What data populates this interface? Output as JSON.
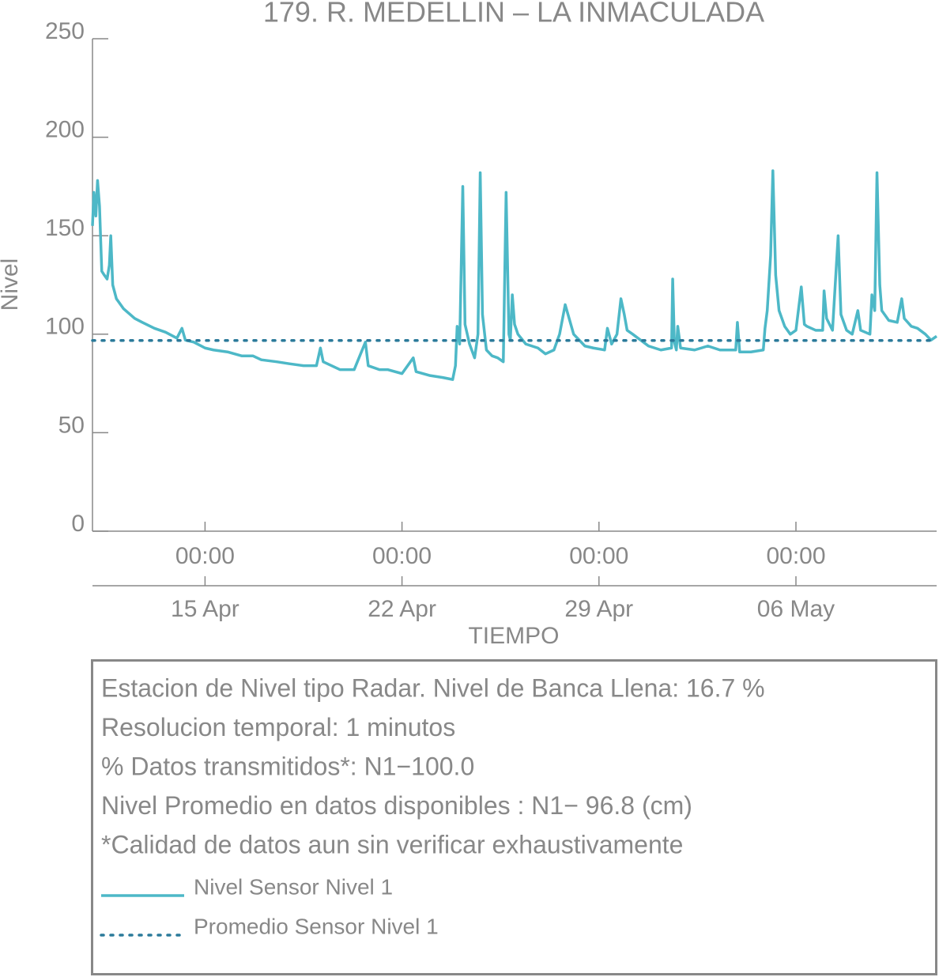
{
  "chart_data": {
    "type": "line",
    "title": "179. R. MEDELLIN – LA INMACULADA",
    "xlabel": "TIEMPO",
    "ylabel": "Nivel",
    "xlim": [
      11,
      41
    ],
    "xticks": [
      {
        "value": 15,
        "label": "15 Apr",
        "time_label": "00:00"
      },
      {
        "value": 22,
        "label": "22 Apr",
        "time_label": "00:00"
      },
      {
        "value": 29,
        "label": "29 Apr",
        "time_label": "00:00"
      },
      {
        "value": 36,
        "label": "06 May",
        "time_label": "00:00"
      }
    ],
    "ylim": [
      0,
      250
    ],
    "yticks": [
      0,
      50,
      100,
      150,
      200,
      250
    ],
    "series": [
      {
        "name": "Nivel Sensor Nivel 1",
        "color": "#4db8c7",
        "style": "solid",
        "x": [
          11.0,
          11.05,
          11.12,
          11.18,
          11.25,
          11.33,
          11.42,
          11.52,
          11.6,
          11.65,
          11.72,
          11.85,
          12.1,
          12.5,
          12.77,
          13.2,
          13.6,
          14.0,
          14.18,
          14.3,
          14.6,
          15.0,
          15.3,
          15.8,
          16.3,
          16.7,
          17.0,
          17.55,
          18.0,
          18.5,
          18.96,
          19.1,
          19.2,
          19.5,
          19.8,
          20.3,
          20.7,
          20.8,
          21.2,
          21.5,
          22.0,
          22.4,
          22.5,
          23.0,
          23.45,
          23.8,
          23.9,
          23.96,
          24.05,
          24.16,
          24.24,
          24.4,
          24.58,
          24.7,
          24.78,
          24.86,
          25.0,
          25.2,
          25.4,
          25.6,
          25.7,
          25.8,
          25.85,
          25.92,
          26.0,
          26.12,
          26.4,
          26.83,
          27.1,
          27.4,
          27.6,
          27.8,
          27.9,
          28.1,
          28.5,
          28.8,
          29.2,
          29.3,
          29.45,
          29.64,
          29.78,
          29.9,
          30.0,
          30.2,
          30.76,
          31.2,
          31.58,
          31.62,
          31.68,
          31.75,
          31.8,
          31.9,
          32.4,
          32.87,
          33.3,
          33.86,
          33.92,
          34.0,
          34.4,
          34.84,
          34.9,
          34.98,
          35.1,
          35.18,
          35.28,
          35.4,
          35.6,
          35.8,
          36.0,
          36.19,
          36.3,
          36.39,
          36.7,
          36.95,
          37.0,
          37.09,
          37.3,
          37.5,
          37.6,
          37.8,
          38.0,
          38.2,
          38.3,
          38.63,
          38.7,
          38.8,
          38.88,
          38.98,
          39.05,
          39.3,
          39.6,
          39.76,
          39.85,
          40.1,
          40.32,
          40.6,
          40.8,
          41.0
        ],
        "values": [
          155,
          172,
          160,
          178,
          165,
          132,
          130,
          128,
          135,
          150,
          125,
          118,
          113,
          108,
          106,
          103,
          101,
          98,
          103,
          97,
          96,
          93,
          92,
          91,
          89,
          89,
          87,
          86,
          85,
          84,
          84,
          93,
          86,
          84,
          82,
          82,
          96,
          84,
          82,
          82,
          80,
          88,
          81,
          79,
          78,
          77,
          84,
          104,
          95,
          175,
          105,
          95,
          88,
          100,
          182,
          110,
          92,
          89,
          88,
          86,
          172,
          100,
          97,
          120,
          105,
          100,
          95,
          93,
          90,
          92,
          100,
          115,
          110,
          100,
          94,
          93,
          92,
          103,
          95,
          100,
          118,
          110,
          102,
          100,
          94,
          92,
          93,
          128,
          96,
          92,
          104,
          93,
          92,
          94,
          92,
          92,
          106,
          91,
          91,
          92,
          103,
          112,
          140,
          183,
          130,
          112,
          104,
          100,
          102,
          124,
          105,
          104,
          102,
          102,
          122,
          108,
          102,
          150,
          110,
          102,
          100,
          112,
          102,
          100,
          120,
          112,
          182,
          125,
          112,
          107,
          106,
          118,
          108,
          104,
          103,
          100,
          97,
          99
        ]
      },
      {
        "name": "Promedio Sensor Nivel 1",
        "color": "#2b7a9a",
        "style": "dotted",
        "x": [
          11,
          41
        ],
        "values": [
          96.8,
          96.8
        ]
      }
    ],
    "notes": [
      "Estacion de Nivel tipo Radar. Nivel de Banca Llena: 16.7 %",
      "Resolucion temporal: 1 minutos",
      "% Datos transmitidos*: N1−100.0",
      "Nivel Promedio en datos disponibles : N1− 96.8 (cm)",
      "*Calidad de datos aun sin verificar exhaustivamente"
    ]
  }
}
